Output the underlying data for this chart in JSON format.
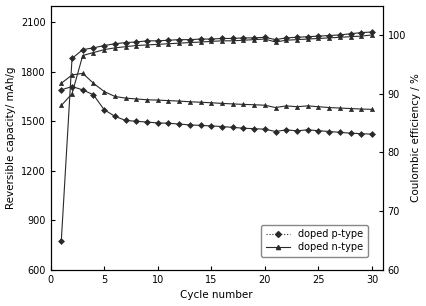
{
  "xlabel": "Cycle number",
  "ylabel_left": "Reversible capacity/ mAh/g",
  "ylabel_right": "Coulombic efficiency / %",
  "xlim": [
    0,
    31
  ],
  "ylim_left": [
    600,
    2200
  ],
  "ylim_right": [
    60,
    105
  ],
  "yticks_left": [
    600,
    900,
    1200,
    1500,
    1800,
    2100
  ],
  "yticks_right": [
    60,
    70,
    80,
    90,
    100
  ],
  "xticks": [
    0,
    5,
    10,
    15,
    20,
    25,
    30
  ],
  "background_color": "#ffffff",
  "p_cap_x": [
    1,
    2,
    3,
    4,
    5,
    6,
    7,
    8,
    9,
    10,
    11,
    12,
    13,
    14,
    15,
    16,
    17,
    18,
    19,
    20,
    21,
    22,
    23,
    24,
    25,
    26,
    27,
    28,
    29,
    30
  ],
  "p_cap_y": [
    1690,
    1710,
    1690,
    1660,
    1570,
    1530,
    1505,
    1500,
    1495,
    1490,
    1488,
    1483,
    1478,
    1475,
    1472,
    1468,
    1463,
    1458,
    1455,
    1452,
    1438,
    1448,
    1442,
    1448,
    1443,
    1438,
    1433,
    1428,
    1425,
    1422
  ],
  "n_cap_x": [
    1,
    2,
    3,
    4,
    5,
    6,
    7,
    8,
    9,
    10,
    11,
    12,
    13,
    14,
    15,
    16,
    17,
    18,
    19,
    20,
    21,
    22,
    23,
    24,
    25,
    26,
    27,
    28,
    29,
    30
  ],
  "n_cap_y": [
    1730,
    1780,
    1790,
    1730,
    1680,
    1650,
    1640,
    1635,
    1630,
    1628,
    1625,
    1622,
    1618,
    1615,
    1612,
    1608,
    1605,
    1602,
    1600,
    1597,
    1583,
    1593,
    1588,
    1593,
    1588,
    1583,
    1580,
    1577,
    1574,
    1572
  ],
  "p_eff_x": [
    1,
    2,
    3,
    4,
    5,
    6,
    7,
    8,
    9,
    10,
    11,
    12,
    13,
    14,
    15,
    16,
    17,
    18,
    19,
    20,
    21,
    22,
    23,
    24,
    25,
    26,
    27,
    28,
    29,
    30
  ],
  "p_eff_y": [
    65,
    96,
    97.5,
    97.8,
    98.2,
    98.5,
    98.7,
    98.8,
    99.0,
    99.0,
    99.1,
    99.2,
    99.2,
    99.3,
    99.3,
    99.4,
    99.4,
    99.5,
    99.5,
    99.6,
    99.2,
    99.5,
    99.6,
    99.7,
    99.8,
    99.9,
    100.0,
    100.2,
    100.4,
    100.5
  ],
  "n_eff_x": [
    1,
    2,
    3,
    4,
    5,
    6,
    7,
    8,
    9,
    10,
    11,
    12,
    13,
    14,
    15,
    16,
    17,
    18,
    19,
    20,
    21,
    22,
    23,
    24,
    25,
    26,
    27,
    28,
    29,
    30
  ],
  "n_eff_y": [
    88,
    90,
    96.5,
    97.0,
    97.5,
    97.8,
    98.0,
    98.2,
    98.3,
    98.4,
    98.5,
    98.6,
    98.7,
    98.8,
    98.9,
    99.0,
    99.0,
    99.1,
    99.2,
    99.3,
    98.8,
    99.1,
    99.2,
    99.3,
    99.4,
    99.5,
    99.6,
    99.7,
    99.8,
    100.0
  ],
  "fontsize": 7.5,
  "tick_fontsize": 7,
  "marker_size": 3.0,
  "line_width": 0.8
}
